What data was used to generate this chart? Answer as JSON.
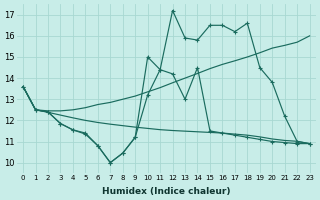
{
  "xlabel": "Humidex (Indice chaleur)",
  "xlim": [
    -0.5,
    23.5
  ],
  "ylim": [
    9.5,
    17.5
  ],
  "yticks": [
    10,
    11,
    12,
    13,
    14,
    15,
    16,
    17
  ],
  "xticks": [
    0,
    1,
    2,
    3,
    4,
    5,
    6,
    7,
    8,
    9,
    10,
    11,
    12,
    13,
    14,
    15,
    16,
    17,
    18,
    19,
    20,
    21,
    22,
    23
  ],
  "bg_color": "#c8ede8",
  "grid_color": "#a8d8d2",
  "line_color": "#1a6b5e",
  "jagged_main_y": [
    13.6,
    12.5,
    12.4,
    11.85,
    11.55,
    11.4,
    10.8,
    10.0,
    10.45,
    11.2,
    15.0,
    14.4,
    17.2,
    15.9,
    15.8,
    16.5,
    16.5,
    16.2,
    16.6,
    14.5,
    13.8,
    12.2,
    11.0,
    10.9
  ],
  "jagged_lower_y": [
    13.6,
    12.5,
    12.4,
    11.85,
    11.55,
    11.35,
    10.8,
    10.0,
    10.45,
    11.2,
    13.2,
    14.4,
    14.2,
    13.0,
    14.5,
    11.5,
    11.4,
    11.3,
    11.2,
    11.1,
    11.0,
    10.95,
    10.9,
    10.9
  ],
  "smooth_upper_y": [
    13.6,
    12.5,
    12.45,
    12.45,
    12.5,
    12.6,
    12.75,
    12.85,
    13.0,
    13.15,
    13.35,
    13.55,
    13.78,
    14.0,
    14.22,
    14.45,
    14.65,
    14.82,
    15.0,
    15.2,
    15.42,
    15.55,
    15.7,
    16.0
  ],
  "smooth_lower_y": [
    13.6,
    12.5,
    12.38,
    12.25,
    12.12,
    12.0,
    11.9,
    11.82,
    11.75,
    11.68,
    11.62,
    11.56,
    11.52,
    11.49,
    11.46,
    11.43,
    11.4,
    11.35,
    11.3,
    11.22,
    11.12,
    11.05,
    11.01,
    10.9
  ]
}
